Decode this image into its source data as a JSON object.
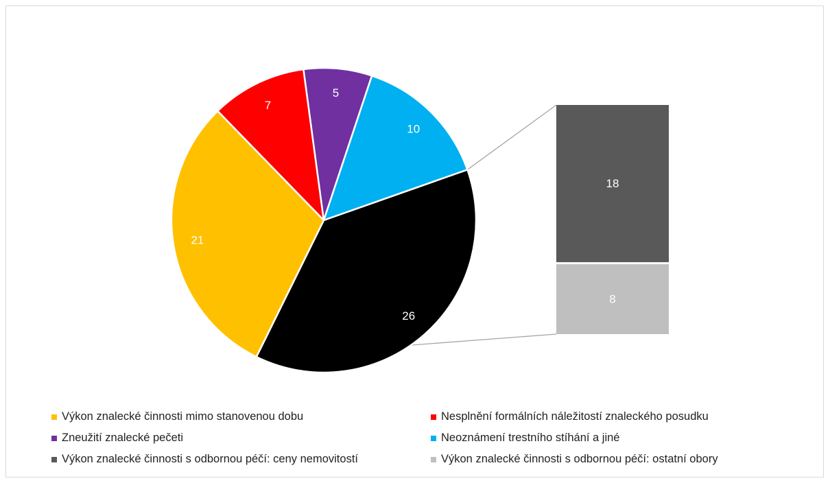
{
  "chart_data": {
    "type": "bar-of-pie",
    "pie": {
      "slices": [
        {
          "label": "Výkon znalecké činnosti s odbornou péčí",
          "value": 26,
          "color": "#000000",
          "label_color": "#ffffff"
        },
        {
          "label": "Výkon znalecké činnosti mimo stanovenou dobu",
          "value": 21,
          "color": "#ffc000",
          "label_color": "#ffffff"
        },
        {
          "label": "Nesplnění formálních náležitostí znaleckého posudku",
          "value": 7,
          "color": "#ff0000",
          "label_color": "#ffffff"
        },
        {
          "label": "Zneužití znalecké pečeti",
          "value": 5,
          "color": "#7030a0",
          "label_color": "#ffffff"
        },
        {
          "label": "Neoznámení trestního stíhání a jiné",
          "value": 10,
          "color": "#00b0f0",
          "label_color": "#ffffff"
        }
      ]
    },
    "bar": {
      "parent_slice": "Výkon znalecké činnosti s odbornou péčí",
      "segments": [
        {
          "label": "Výkon znalecké činnosti s odbornou péčí: ceny nemovitostí",
          "value": 18,
          "color": "#595959",
          "label_color": "#ffffff"
        },
        {
          "label": "Výkon znalecké činnosti s odbornou péčí: ostatní obory",
          "value": 8,
          "color": "#bfbfbf",
          "label_color": "#ffffff"
        }
      ]
    },
    "legend": {
      "position": "bottom",
      "entries": [
        {
          "label": "Výkon znalecké činnosti mimo stanovenou dobu",
          "color": "#ffc000"
        },
        {
          "label": "Nesplnění formálních náležitostí znaleckého posudku",
          "color": "#ff0000"
        },
        {
          "label": "Zneužití znalecké pečeti",
          "color": "#7030a0"
        },
        {
          "label": "Neoznámení trestního stíhání a jiné",
          "color": "#00b0f0"
        },
        {
          "label": "Výkon znalecké činnosti s odbornou péčí: ceny nemovitostí",
          "color": "#595959"
        },
        {
          "label": "Výkon znalecké činnosti s odbornou péčí: ostatní obory",
          "color": "#bfbfbf"
        }
      ]
    }
  }
}
